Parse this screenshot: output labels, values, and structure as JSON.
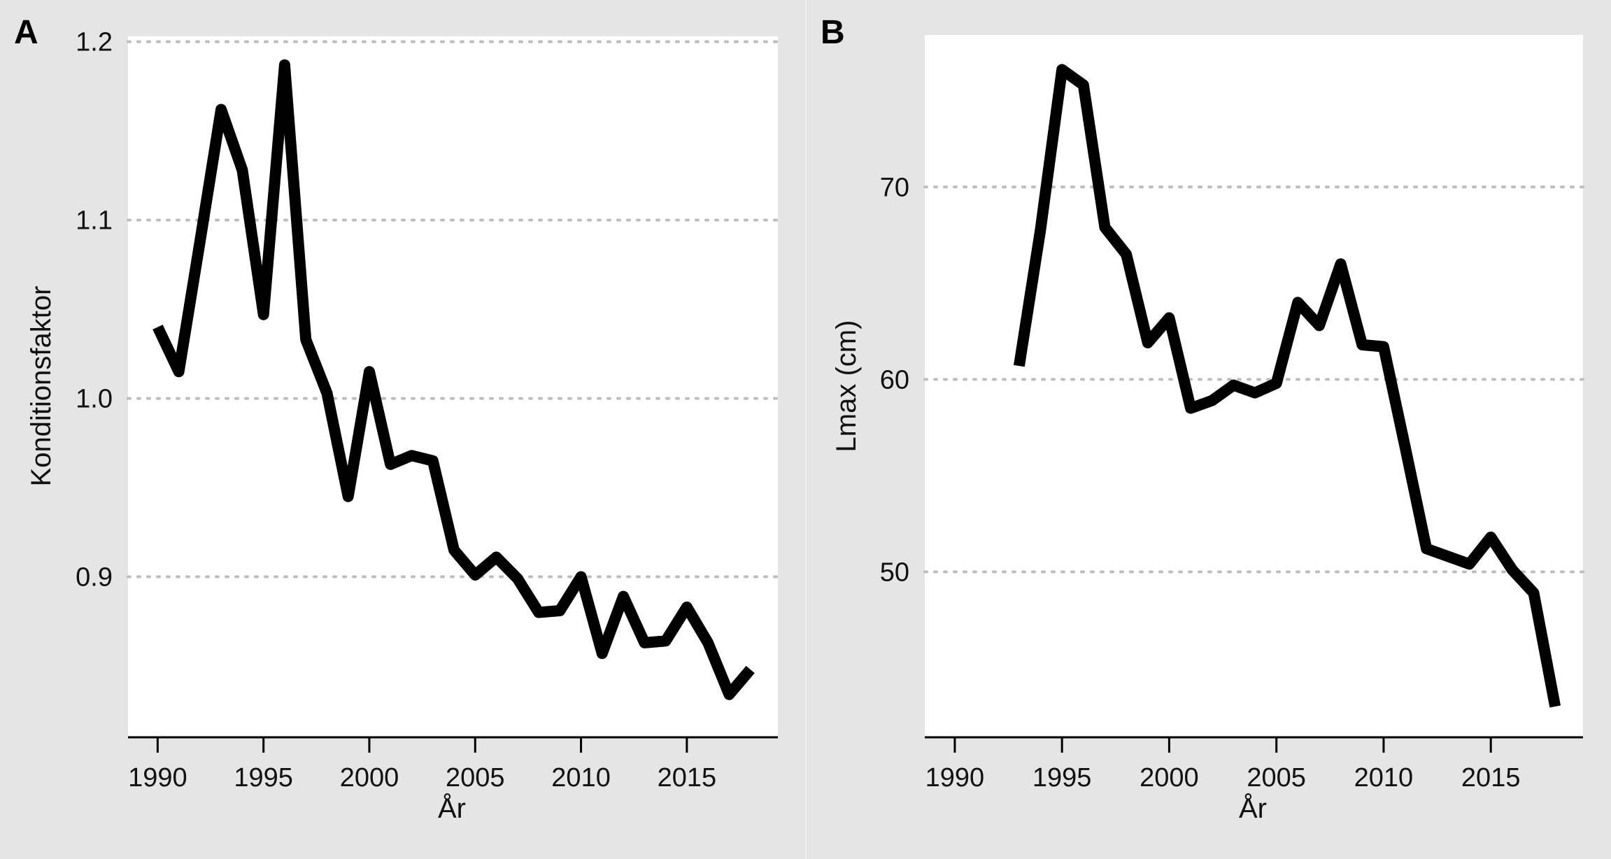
{
  "chart_data": [
    {
      "panel": "A",
      "type": "line",
      "xlabel": "År",
      "ylabel": "Konditionsfaktor",
      "grid": "horizontal-dotted",
      "xlim": [
        1988.6,
        2019.3
      ],
      "ylim": [
        0.81,
        1.203
      ],
      "x_ticks": [
        1990,
        1995,
        2000,
        2005,
        2010,
        2015
      ],
      "y_ticks": [
        0.9,
        1.0,
        1.1,
        1.2
      ],
      "y_tick_labels": [
        "0.9",
        "1.0",
        "1.1",
        "1.2"
      ],
      "line_color": "#000000",
      "series": [
        {
          "x": [
            1990,
            1991,
            1992,
            1993,
            1994,
            1995,
            1996,
            1997,
            1998,
            1999,
            2000,
            2001,
            2002,
            2003,
            2004,
            2005,
            2006,
            2007,
            2008,
            2009,
            2010,
            2011,
            2012,
            2013,
            2014,
            2015,
            2016,
            2017,
            2018
          ],
          "values": [
            1.04,
            1.015,
            1.088,
            1.162,
            1.128,
            1.047,
            1.187,
            1.033,
            1.003,
            0.945,
            1.015,
            0.963,
            0.968,
            0.965,
            0.915,
            0.901,
            0.911,
            0.899,
            0.88,
            0.881,
            0.9,
            0.857,
            0.889,
            0.863,
            0.864,
            0.883,
            0.863,
            0.834,
            0.848
          ]
        }
      ]
    },
    {
      "panel": "B",
      "type": "line",
      "xlabel": "År",
      "ylabel": "Lmax (cm)",
      "grid": "horizontal-dotted",
      "xlim": [
        1988.6,
        2019.3
      ],
      "ylim": [
        41.4,
        77.9
      ],
      "x_ticks": [
        1990,
        1995,
        2000,
        2005,
        2010,
        2015
      ],
      "y_ticks": [
        50,
        60,
        70
      ],
      "y_tick_labels": [
        "50",
        "60",
        "70"
      ],
      "line_color": "#000000",
      "series": [
        {
          "x": [
            1993,
            1994,
            1995,
            1996,
            1997,
            1998,
            1999,
            2000,
            2001,
            2002,
            2003,
            2004,
            2005,
            2006,
            2007,
            2008,
            2009,
            2010,
            2011,
            2012,
            2013,
            2014,
            2015,
            2016,
            2017,
            2018
          ],
          "values": [
            60.7,
            67.8,
            76.1,
            75.3,
            67.9,
            66.5,
            61.9,
            63.2,
            58.5,
            58.9,
            59.7,
            59.3,
            59.8,
            64.0,
            62.8,
            66.0,
            61.8,
            61.7,
            56.5,
            51.2,
            50.8,
            50.4,
            51.8,
            50.1,
            48.9,
            43.0
          ]
        }
      ]
    }
  ]
}
